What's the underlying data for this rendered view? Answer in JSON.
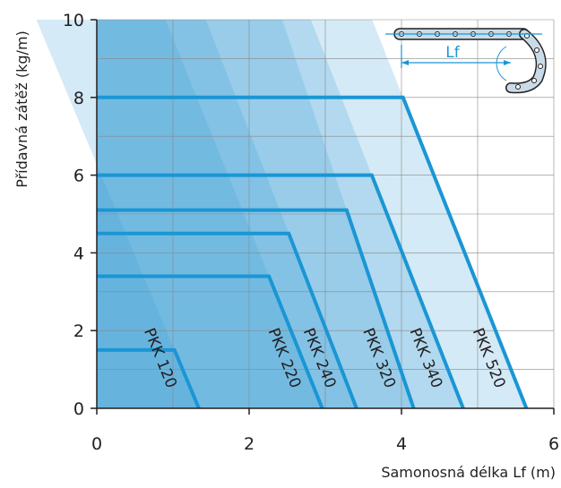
{
  "chart_data": {
    "type": "line",
    "x_label": "Samonosná délka Lf (m)",
    "y_label": "Přídavná zátěž (kg/m)",
    "xlim": [
      0,
      6
    ],
    "ylim": [
      0,
      10
    ],
    "xticks": [
      0,
      2,
      4,
      6
    ],
    "yticks": [
      0,
      2,
      4,
      6,
      8,
      10
    ],
    "x_minor_grid": [
      1,
      3,
      5
    ],
    "y_minor_grid": [
      1,
      3,
      5,
      7,
      9
    ],
    "grid": true,
    "line_color": "#1a96d4",
    "region_color": "#3c9fd8",
    "icon_label": "Lf",
    "series": [
      {
        "name": "PKK 120",
        "x": [
          0,
          1.02,
          1.34
        ],
        "values": [
          1.5,
          1.5,
          0
        ]
      },
      {
        "name": "PKK 220",
        "x": [
          0,
          2.26,
          2.96
        ],
        "values": [
          3.4,
          3.4,
          0
        ]
      },
      {
        "name": "PKK 240",
        "x": [
          0,
          2.52,
          3.41
        ],
        "values": [
          4.5,
          4.5,
          0
        ]
      },
      {
        "name": "PKK 320",
        "x": [
          0,
          3.28,
          4.16
        ],
        "values": [
          5.1,
          5.1,
          0
        ]
      },
      {
        "name": "PKK 340",
        "x": [
          0,
          3.61,
          4.81
        ],
        "values": [
          6,
          6,
          0
        ]
      },
      {
        "name": "PKK 520",
        "x": [
          0,
          4.02,
          5.64
        ],
        "values": [
          8,
          8,
          0
        ]
      }
    ]
  }
}
